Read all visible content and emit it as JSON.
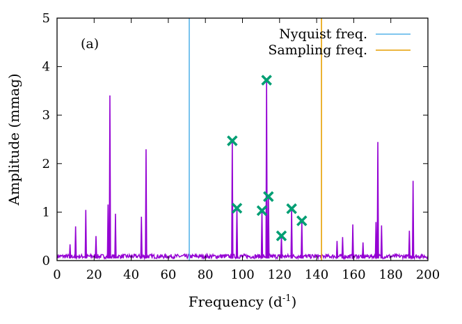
{
  "chart_data": {
    "type": "line",
    "title": "",
    "panel_label": "(a)",
    "xlabel": "Frequency (d",
    "xlabel_superscript": "-1",
    "xlabel_suffix": ")",
    "ylabel": "Amplitude (mmag)",
    "xlim": [
      0,
      200
    ],
    "ylim": [
      0,
      5
    ],
    "xticks": [
      0,
      20,
      40,
      60,
      80,
      100,
      120,
      140,
      160,
      180,
      200
    ],
    "yticks": [
      0,
      1,
      2,
      3,
      4,
      5
    ],
    "grid": false,
    "legend_position": "top-right",
    "colors": {
      "spectrum": "#9400d3",
      "nyquist": "#56b4e9",
      "sampling": "#e69f00",
      "markers": "#009e73"
    },
    "series": [
      {
        "name": "",
        "role": "spectrum",
        "noise_floor": 0.12,
        "peaks": [
          {
            "x": 7,
            "y": 0.33
          },
          {
            "x": 10,
            "y": 0.7
          },
          {
            "x": 15.5,
            "y": 1.04
          },
          {
            "x": 21,
            "y": 0.5
          },
          {
            "x": 27.5,
            "y": 1.15
          },
          {
            "x": 28.5,
            "y": 3.4
          },
          {
            "x": 31.5,
            "y": 0.96
          },
          {
            "x": 45.5,
            "y": 0.9
          },
          {
            "x": 48,
            "y": 2.29
          },
          {
            "x": 94.5,
            "y": 2.47
          },
          {
            "x": 97,
            "y": 1.08
          },
          {
            "x": 110.5,
            "y": 1.03
          },
          {
            "x": 113,
            "y": 3.72
          },
          {
            "x": 114,
            "y": 1.32
          },
          {
            "x": 121,
            "y": 0.51
          },
          {
            "x": 126.5,
            "y": 1.07
          },
          {
            "x": 132,
            "y": 0.82
          },
          {
            "x": 151,
            "y": 0.4
          },
          {
            "x": 154,
            "y": 0.48
          },
          {
            "x": 159.5,
            "y": 0.74
          },
          {
            "x": 165,
            "y": 0.37
          },
          {
            "x": 172,
            "y": 0.79
          },
          {
            "x": 173,
            "y": 2.44
          },
          {
            "x": 175,
            "y": 0.72
          },
          {
            "x": 190,
            "y": 0.61
          },
          {
            "x": 192,
            "y": 1.64
          }
        ]
      },
      {
        "name": "Nyquist freq.",
        "role": "vertical-line",
        "x": 71.3
      },
      {
        "name": "Sampling freq.",
        "role": "vertical-line",
        "x": 142.6
      },
      {
        "name": "",
        "role": "markers",
        "points": [
          {
            "x": 94.5,
            "y": 2.47
          },
          {
            "x": 97,
            "y": 1.08
          },
          {
            "x": 110.5,
            "y": 1.03
          },
          {
            "x": 113,
            "y": 3.72
          },
          {
            "x": 114,
            "y": 1.32
          },
          {
            "x": 121,
            "y": 0.51
          },
          {
            "x": 126.5,
            "y": 1.07
          },
          {
            "x": 132,
            "y": 0.82
          }
        ]
      }
    ]
  }
}
